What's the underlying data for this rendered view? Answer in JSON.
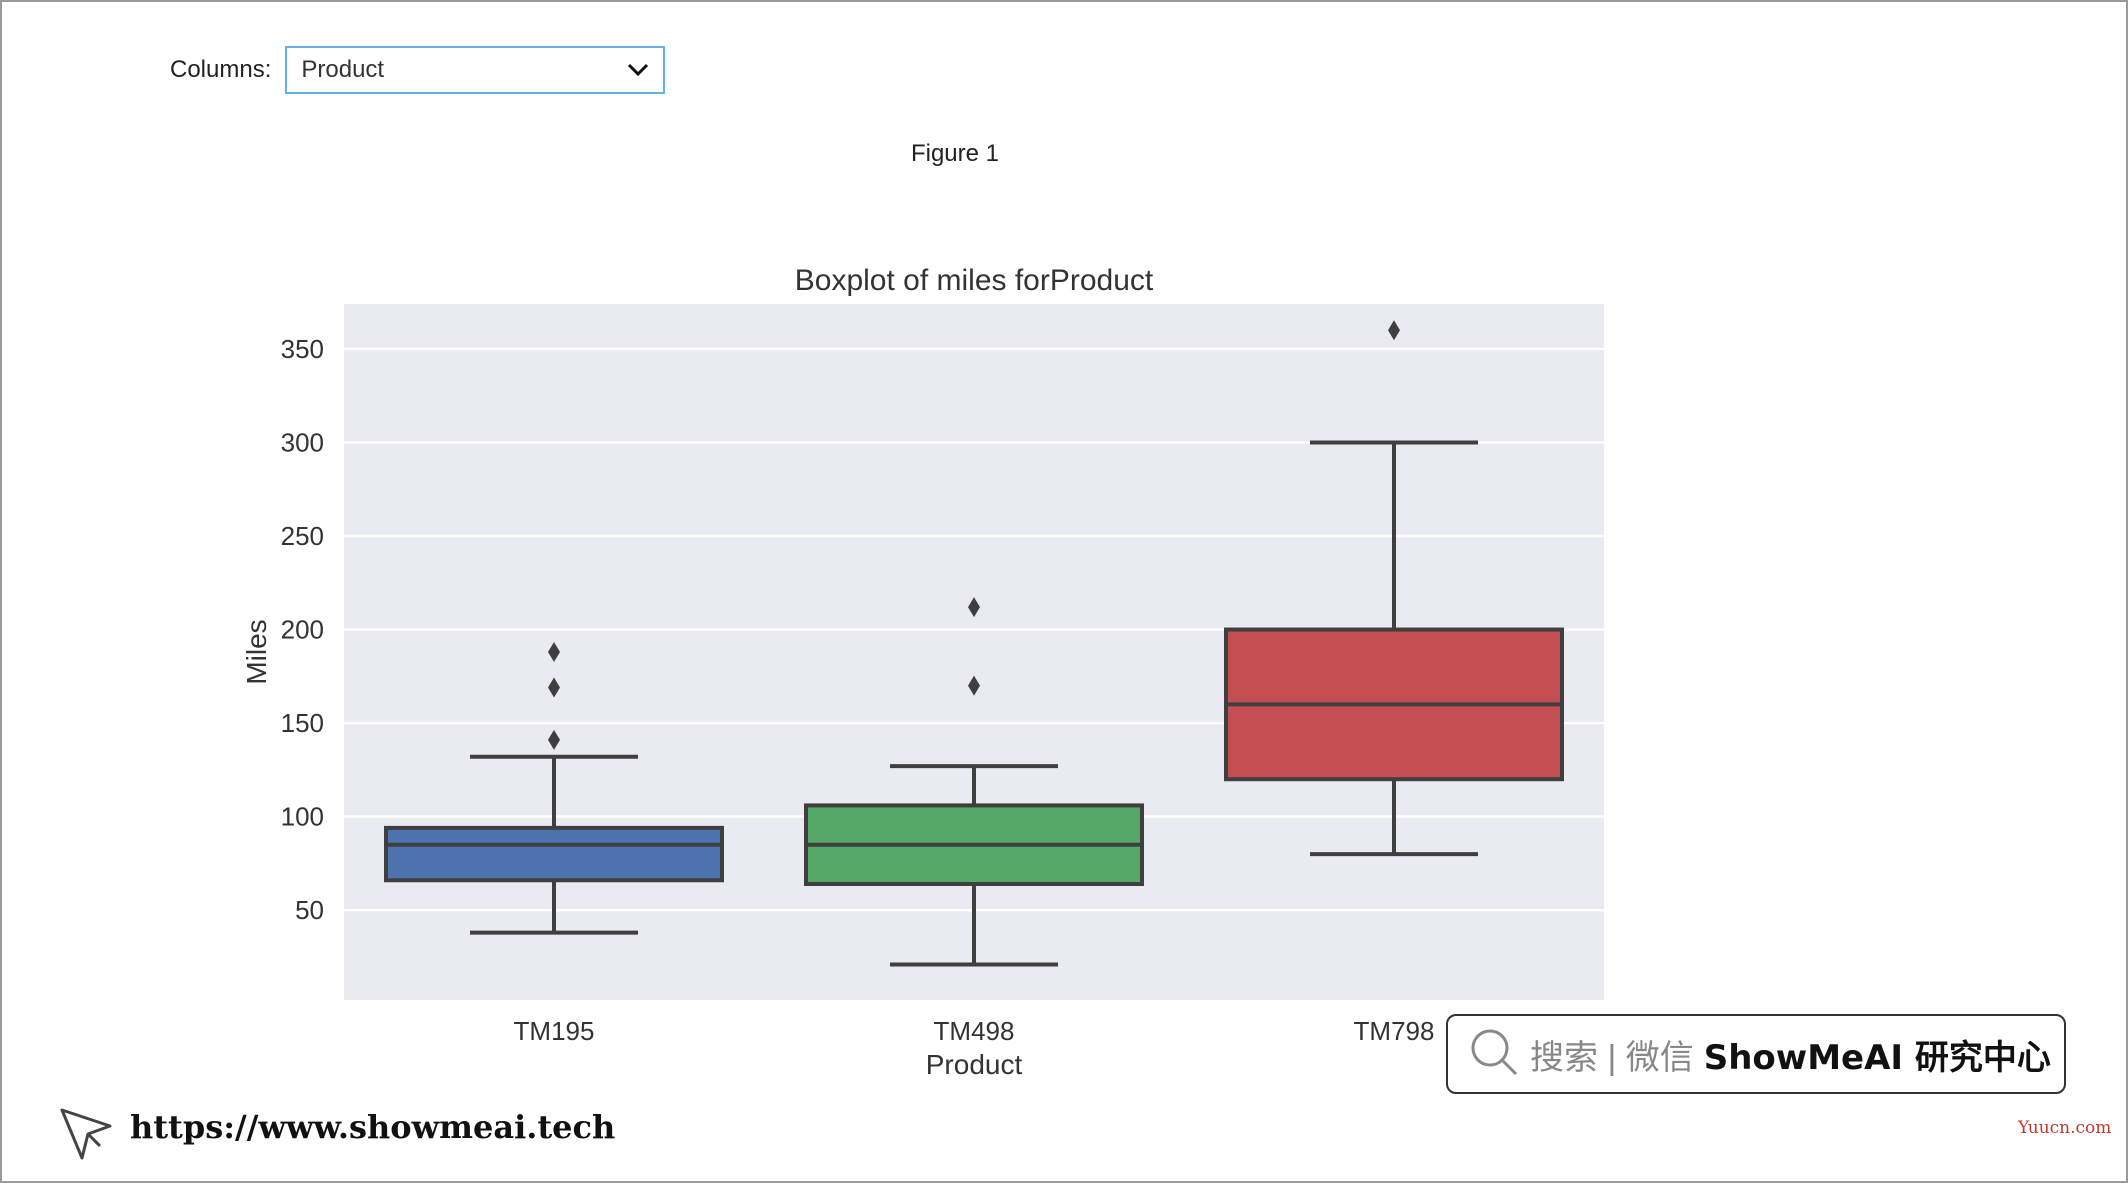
{
  "controls": {
    "columns_label": "Columns:",
    "columns_selected": "Product"
  },
  "figure_title": "Figure 1",
  "chart_data": {
    "type": "box",
    "title": "Boxplot of miles forProduct",
    "xlabel": "Product",
    "ylabel": "Miles",
    "categories": [
      "TM195",
      "TM498",
      "TM798"
    ],
    "ylim": [
      2,
      374
    ],
    "yticks": [
      50,
      100,
      150,
      200,
      250,
      300,
      350
    ],
    "grid": true,
    "boxes": [
      {
        "name": "TM195",
        "whisker_low": 38,
        "q1": 66,
        "median": 85,
        "q3": 94,
        "whisker_high": 132,
        "outliers": [
          141,
          169,
          188
        ],
        "color": "#4c72b0"
      },
      {
        "name": "TM498",
        "whisker_low": 21,
        "q1": 64,
        "median": 85,
        "q3": 106,
        "whisker_high": 127,
        "outliers": [
          170,
          212
        ],
        "color": "#55a868"
      },
      {
        "name": "TM798",
        "whisker_low": 80,
        "q1": 120,
        "median": 160,
        "q3": 200,
        "whisker_high": 300,
        "outliers": [
          360
        ],
        "color": "#c44e52"
      }
    ]
  },
  "watermark": {
    "search_text": "搜索 | 微信",
    "brand_text": "ShowMeAI 研究中心"
  },
  "footer": {
    "url": "https://www.showmeai.tech",
    "site_tag": "Yuucn.com"
  }
}
